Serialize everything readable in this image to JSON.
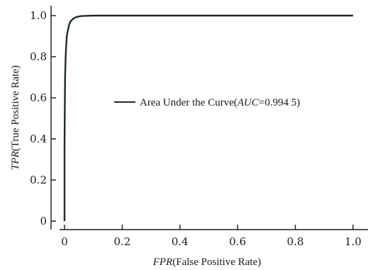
{
  "chart_data": {
    "type": "line",
    "title": "",
    "xlabel": {
      "italic": "FPR",
      "rest": "(False Positive Rate)"
    },
    "ylabel": {
      "italic": "TPR",
      "rest": "(True Positive Rate)"
    },
    "xlim": [
      0,
      1
    ],
    "ylim": [
      0,
      1
    ],
    "x_ticks": [
      0,
      0.2,
      0.4,
      0.6,
      0.8,
      1.0
    ],
    "x_tick_labels": [
      "0",
      "0.2",
      "0.4",
      "0.6",
      "0.8",
      "1.0"
    ],
    "y_ticks": [
      0,
      0.2,
      0.4,
      0.6,
      0.8,
      1.0
    ],
    "y_tick_labels": [
      "0",
      "0.2",
      "0.4",
      "0.6",
      "0.8",
      "1.0"
    ],
    "grid": false,
    "legend": {
      "placement": "center-right",
      "prefix": "Area Under the Curve(",
      "italic": "AUC",
      "value": "=0.994 5)"
    },
    "series": [
      {
        "x": [
          0,
          0,
          0.001,
          0.002,
          0.004,
          0.006,
          0.008,
          0.012,
          0.016,
          0.02,
          0.03,
          0.04,
          0.05,
          0.06,
          0.08,
          0.1,
          0.15,
          0.2,
          0.4,
          0.6,
          0.8,
          1.0
        ],
        "y": [
          0,
          0.35,
          0.55,
          0.7,
          0.8,
          0.86,
          0.9,
          0.93,
          0.955,
          0.97,
          0.985,
          0.992,
          0.996,
          0.998,
          0.999,
          1.0,
          1.0,
          1.0,
          1.0,
          1.0,
          1.0,
          1.0
        ]
      }
    ],
    "colors": {
      "curve": "#1f2a2a",
      "axis": "#1a1a1a"
    }
  }
}
